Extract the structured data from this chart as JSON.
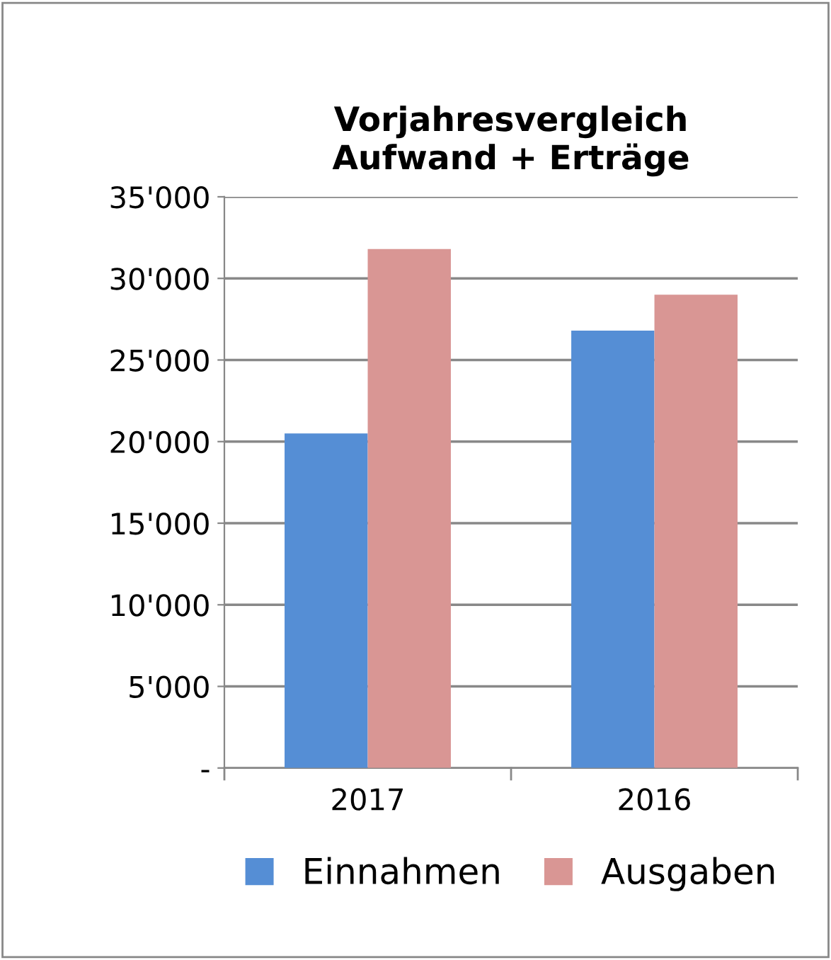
{
  "chart_data": {
    "type": "bar",
    "title": "Vorjahresvergleich\nAufwand + Erträge",
    "categories": [
      "2017",
      "2016"
    ],
    "series": [
      {
        "name": "Einnahmen",
        "color": "#558ed5",
        "values": [
          20500,
          26800
        ]
      },
      {
        "name": "Ausgaben",
        "color": "#d99694",
        "values": [
          31800,
          29000
        ]
      }
    ],
    "ylim": [
      0,
      35000
    ],
    "yticks": [
      {
        "value": 0,
        "label": "-"
      },
      {
        "value": 5000,
        "label": "5'000"
      },
      {
        "value": 10000,
        "label": "10'000"
      },
      {
        "value": 15000,
        "label": "15'000"
      },
      {
        "value": 20000,
        "label": "20'000"
      },
      {
        "value": 25000,
        "label": "25'000"
      },
      {
        "value": 30000,
        "label": "30'000"
      },
      {
        "value": 35000,
        "label": "35'000"
      }
    ],
    "grid": "y",
    "legend": "bottom"
  }
}
